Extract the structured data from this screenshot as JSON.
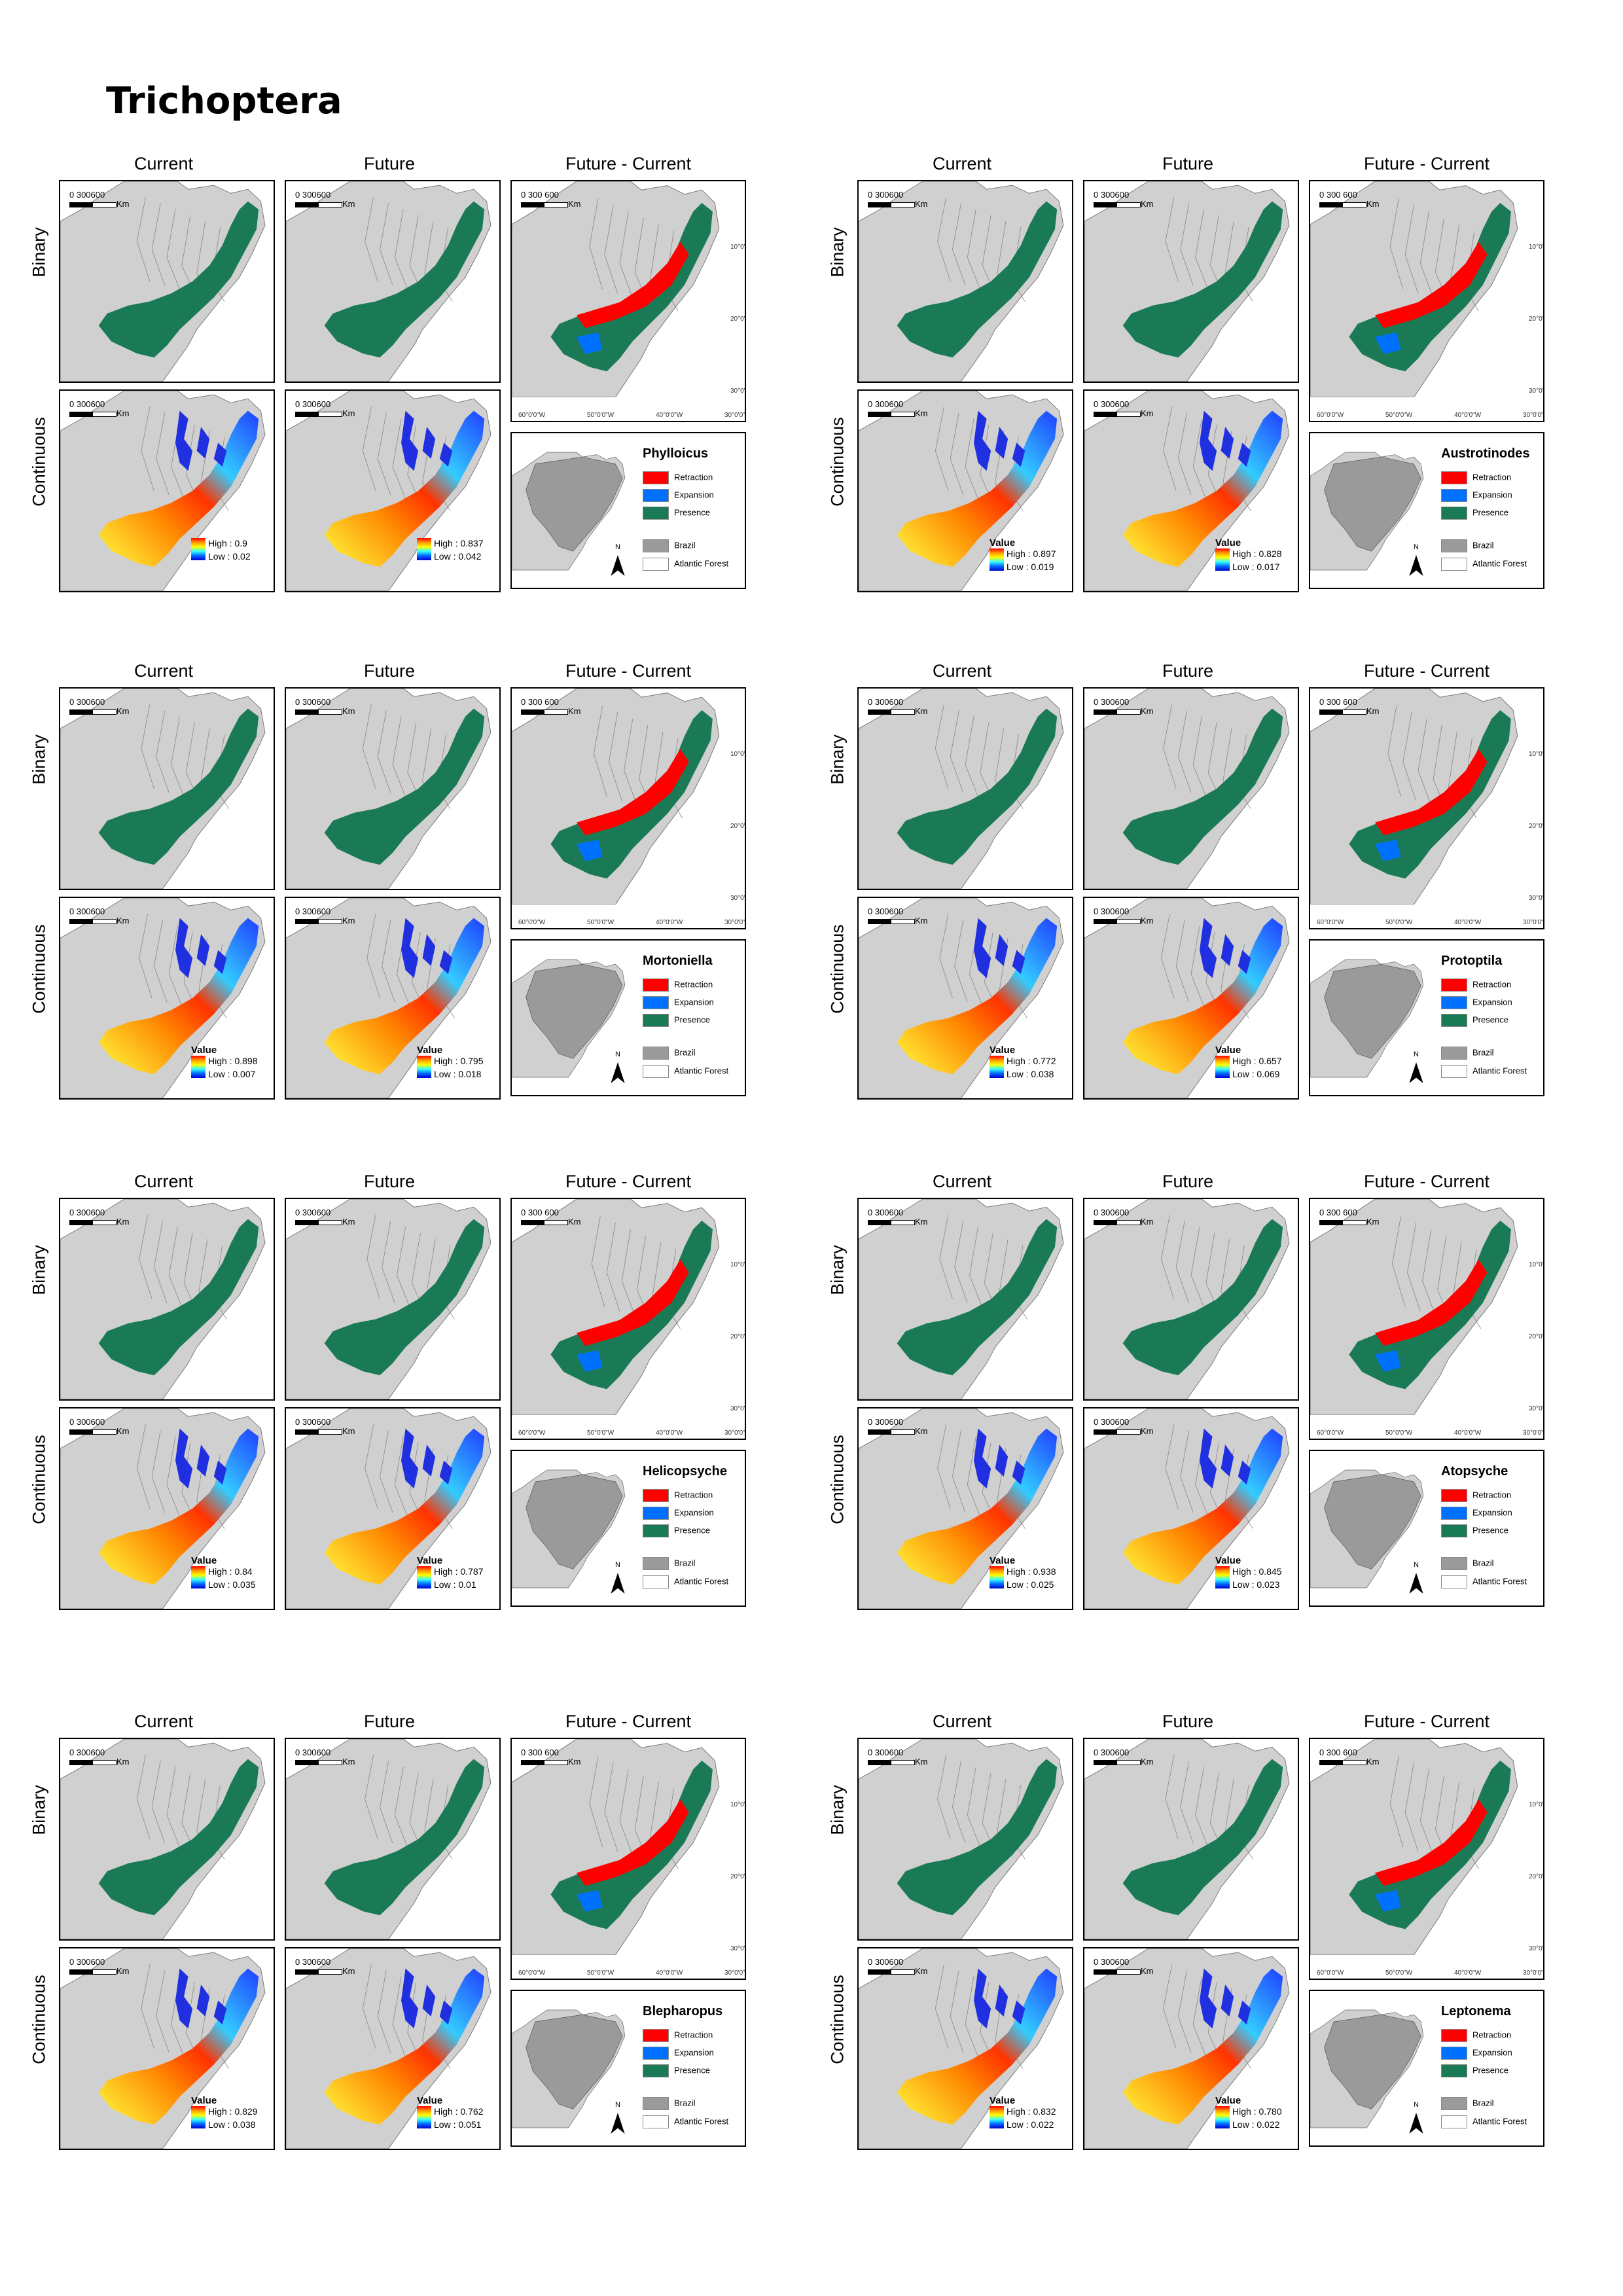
{
  "title": "Trichoptera",
  "headers": {
    "current": "Current",
    "future": "Future",
    "diff": "Future - Current",
    "binary": "Binary",
    "continuous": "Continuous"
  },
  "scale": {
    "text": "0  300600",
    "unit": "Km",
    "text_diff": "0   300 600"
  },
  "legend": {
    "retraction": "Retraction",
    "expansion": "Expansion",
    "presence": "Presence",
    "brazil": "Brazil",
    "atlantic": "Atlantic Forest",
    "value": "Value",
    "north": "N"
  },
  "colors": {
    "retraction": "#ff0000",
    "expansion": "#0070ff",
    "presence": "#1a7a55",
    "brazil": "#9a9a9a",
    "land": "#d0d0d0"
  },
  "coords": {
    "lat": [
      "10°0'0\"S",
      "20°0'0\"S",
      "30°0'0\"S"
    ],
    "lon": [
      "60°0'0\"W",
      "50°0'0\"W",
      "40°0'0\"W",
      "30°0'0\"W"
    ]
  },
  "species": [
    {
      "genus": "Phylloicus",
      "show_value_label": false,
      "current": {
        "high": "High : 0.9",
        "low": "Low : 0.02"
      },
      "future": {
        "high": "High : 0.837",
        "low": "Low : 0.042"
      }
    },
    {
      "genus": "Austrotinodes",
      "show_value_label": true,
      "current": {
        "high": "High : 0.897",
        "low": "Low : 0.019"
      },
      "future": {
        "high": "High : 0.828",
        "low": "Low : 0.017"
      }
    },
    {
      "genus": "Mortoniella",
      "show_value_label": true,
      "current": {
        "high": "High : 0.898",
        "low": "Low : 0.007"
      },
      "future": {
        "high": "High : 0.795",
        "low": "Low : 0.018"
      }
    },
    {
      "genus": "Protoptila",
      "show_value_label": true,
      "current": {
        "high": "High : 0.772",
        "low": "Low : 0.038"
      },
      "future": {
        "high": "High : 0.657",
        "low": "Low : 0.069"
      }
    },
    {
      "genus": "Helicopsyche",
      "show_value_label": true,
      "current": {
        "high": "High : 0.84",
        "low": "Low : 0.035"
      },
      "future": {
        "high": "High : 0.787",
        "low": "Low : 0.01"
      }
    },
    {
      "genus": "Atopsyche",
      "show_value_label": true,
      "current": {
        "high": "High : 0.938",
        "low": "Low : 0.025"
      },
      "future": {
        "high": "High : 0.845",
        "low": "Low : 0.023"
      }
    },
    {
      "genus": "Blepharopus",
      "show_value_label": true,
      "current": {
        "high": "High : 0.829",
        "low": "Low : 0.038"
      },
      "future": {
        "high": "High : 0.762",
        "low": "Low : 0.051"
      }
    },
    {
      "genus": "Leptonema",
      "show_value_label": true,
      "current": {
        "high": "High : 0.832",
        "low": "Low : 0.022"
      },
      "future": {
        "high": "High : 0.780",
        "low": "Low : 0.022"
      }
    }
  ]
}
